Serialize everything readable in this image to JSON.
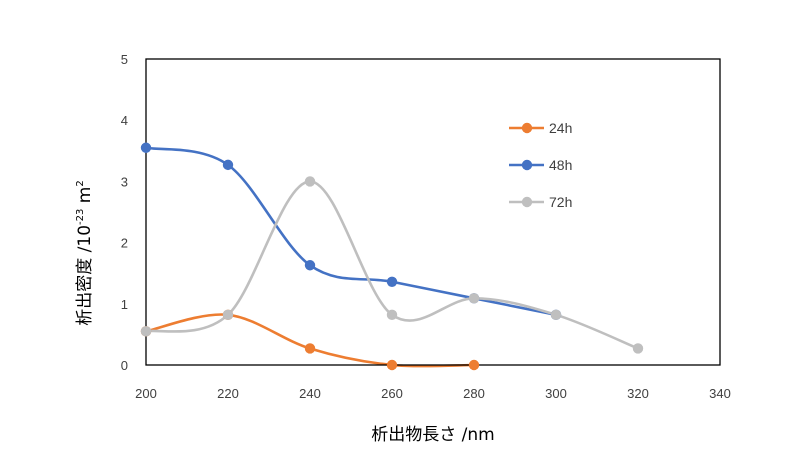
{
  "chart_data": {
    "type": "scatter",
    "xlabel": "析出物長さ /nm",
    "ylabel_main": "析出密度 /10",
    "ylabel_exp": "-23",
    "ylabel_unit": " m",
    "ylabel_unit_exp": "2",
    "xlim": [
      200,
      340
    ],
    "ylim": [
      0,
      5
    ],
    "xticks": [
      "200",
      "220",
      "240",
      "260",
      "280",
      "300",
      "320",
      "340"
    ],
    "yticks": [
      "0",
      "1",
      "2",
      "3",
      "4",
      "5"
    ],
    "smoothed_lines": true,
    "legend_position": "right-inside",
    "series": [
      {
        "name": "24h",
        "color": "#ED7D31",
        "x": [
          200,
          220,
          240,
          260,
          280
        ],
        "y": [
          0.55,
          0.82,
          0.27,
          0.0,
          0.0
        ]
      },
      {
        "name": "48h",
        "color": "#4472C4",
        "x": [
          200,
          220,
          240,
          260,
          280,
          300
        ],
        "y": [
          3.55,
          3.27,
          1.63,
          1.36,
          1.09,
          0.82
        ]
      },
      {
        "name": "72h",
        "color": "#BFBFBF",
        "x": [
          200,
          220,
          240,
          260,
          280,
          300,
          320
        ],
        "y": [
          0.55,
          0.82,
          3.0,
          0.82,
          1.09,
          0.82,
          0.27
        ]
      }
    ]
  }
}
